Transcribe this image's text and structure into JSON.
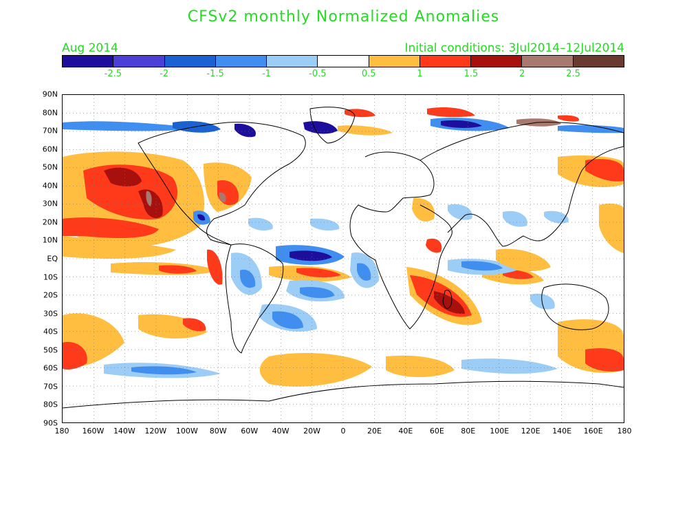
{
  "title": "CFSv2 monthly Normalized Anomalies",
  "month": "Aug 2014",
  "initial_conditions": "Initial conditions: 3Jul2014–12Jul2014",
  "colorbar": {
    "colors": [
      "#1e0e9c",
      "#4b3fd6",
      "#1a62d2",
      "#3f8ef0",
      "#9ccdf6",
      "#ffffff",
      "#ffbe40",
      "#ff3a1a",
      "#a8100e",
      "#a8796f",
      "#6a3a30"
    ],
    "labels": [
      "-2.5",
      "-2",
      "-1.5",
      "-1",
      "-0.5",
      "0.5",
      "1",
      "1.5",
      "2",
      "2.5"
    ]
  },
  "axes": {
    "lat_labels": [
      "90N",
      "80N",
      "70N",
      "60N",
      "50N",
      "40N",
      "30N",
      "20N",
      "10N",
      "EQ",
      "10S",
      "20S",
      "30S",
      "40S",
      "50S",
      "60S",
      "70S",
      "80S",
      "90S"
    ],
    "lon_labels": [
      "180",
      "160W",
      "140W",
      "120W",
      "100W",
      "80W",
      "60W",
      "40W",
      "20W",
      "0",
      "20E",
      "40E",
      "60E",
      "80E",
      "100E",
      "120E",
      "140E",
      "160E",
      "180"
    ]
  }
}
